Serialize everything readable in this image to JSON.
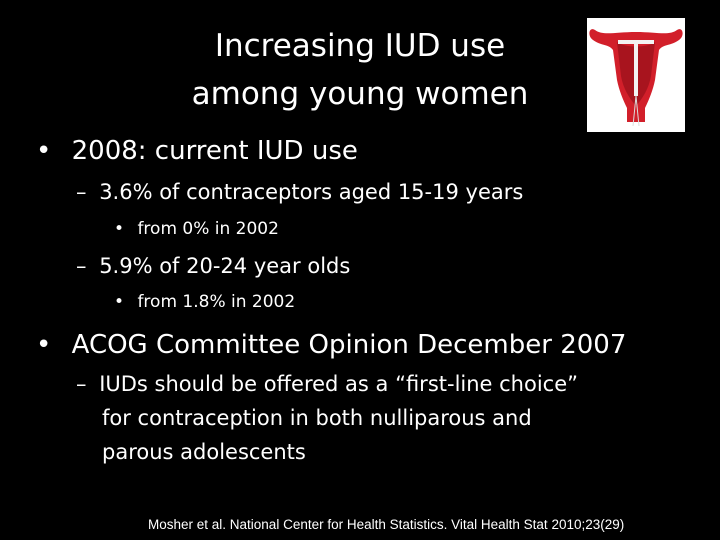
{
  "title": {
    "line1": "Increasing IUD use",
    "line2": "among young women"
  },
  "logo": {
    "icon": "iud-uterus-illustration",
    "colors": {
      "uterus": "#d21f2a",
      "device": "#f3f3f3"
    }
  },
  "bullets": [
    {
      "marker": "•",
      "text": "2008: current IUD use"
    },
    {
      "marker": "–",
      "text": "3.6% of contraceptors aged 15-19 years"
    },
    {
      "marker": "•",
      "text": "from 0% in 2002"
    },
    {
      "marker": "–",
      "text": "5.9% of 20-24 year olds"
    },
    {
      "marker": "•",
      "text": "from 1.8% in 2002"
    },
    {
      "marker": "•",
      "text": "ACOG Committee Opinion December 2007"
    },
    {
      "marker": "–",
      "line1": "IUDs should be offered as a “first-line choice”",
      "line2": "for contraception in both nulliparous and",
      "line3": "parous adolescents"
    }
  ],
  "citation": "Mosher et al. National Center for Health Statistics. Vital Health Stat 2010;23(29)"
}
